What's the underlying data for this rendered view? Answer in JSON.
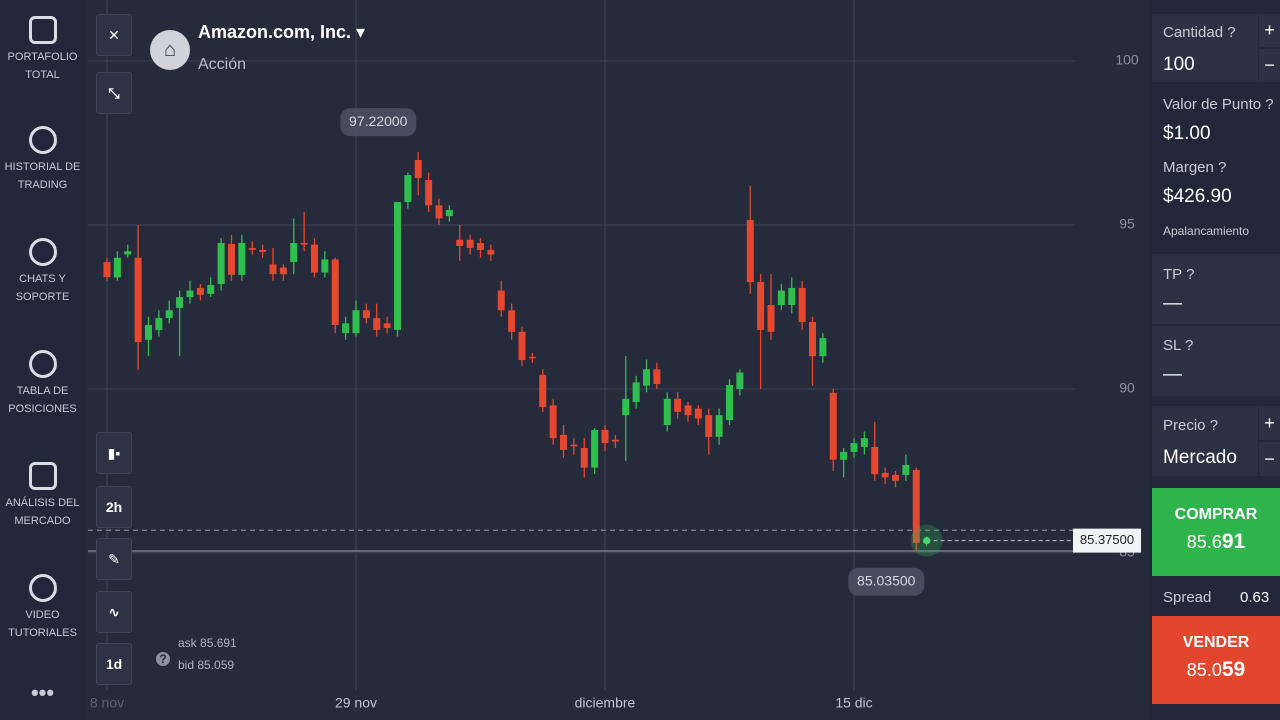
{
  "sidebar": {
    "items": [
      "PORTAFOLIO TOTAL",
      "HISTORIAL DE TRADING",
      "CHATS Y SOPORTE",
      "TABLA DE POSICIONES",
      "ANÁLISIS DEL MERCADO",
      "VIDEO TUTORIALES"
    ]
  },
  "header": {
    "title": "Amazon.com, Inc.",
    "subtitle": "Acción"
  },
  "toolbar": {
    "period": "2h",
    "range": "1d"
  },
  "quote": {
    "ask_label": "ask",
    "ask": 85.691,
    "bid_label": "bid",
    "bid": 85.059
  },
  "chart_data": {
    "type": "candlestick",
    "x": [
      0,
      1,
      2,
      3,
      4,
      5,
      6,
      7,
      8,
      9,
      10,
      11,
      12,
      13,
      14,
      15,
      16,
      17,
      18,
      19,
      20,
      21,
      22,
      23,
      24,
      25,
      26,
      27,
      28,
      29,
      30,
      31,
      32,
      33,
      34,
      35,
      36,
      37,
      38,
      39,
      40,
      41,
      42,
      43,
      44,
      45,
      46,
      47,
      48,
      49,
      50,
      51,
      52,
      53,
      54,
      55,
      56,
      57,
      58,
      59,
      60,
      61,
      62,
      63,
      64,
      65,
      66,
      67,
      68,
      69,
      70,
      71,
      72,
      73,
      74,
      75,
      76,
      77,
      78,
      79
    ],
    "open": [
      93.87,
      93.4,
      94.1,
      94.0,
      91.5,
      91.8,
      92.16,
      92.47,
      92.8,
      93.08,
      92.9,
      93.2,
      94.42,
      93.48,
      94.3,
      94.24,
      93.8,
      93.7,
      93.87,
      94.45,
      94.4,
      93.55,
      93.95,
      91.7,
      91.7,
      92.4,
      92.16,
      92.0,
      91.8,
      95.7,
      96.98,
      96.37,
      95.6,
      95.27,
      94.55,
      94.55,
      94.45,
      94.24,
      93.0,
      92.4,
      91.74,
      90.98,
      90.43,
      89.5,
      88.6,
      88.3,
      88.2,
      87.6,
      88.75,
      88.45,
      89.2,
      89.6,
      90.1,
      90.6,
      88.9,
      89.7,
      89.5,
      89.4,
      89.2,
      88.54,
      89.05,
      90.0,
      95.15,
      93.26,
      92.56,
      92.56,
      92.56,
      93.08,
      92.04,
      91.0,
      89.88,
      87.84,
      88.08,
      88.23,
      88.23,
      87.44,
      87.38,
      87.38,
      87.53,
      85.3
    ],
    "high": [
      94.0,
      94.2,
      94.4,
      95.0,
      92.2,
      92.4,
      92.7,
      93.0,
      93.3,
      93.2,
      93.4,
      94.6,
      94.7,
      94.7,
      94.5,
      94.4,
      94.3,
      93.8,
      95.2,
      95.4,
      94.6,
      94.2,
      94.0,
      92.2,
      92.7,
      92.6,
      92.6,
      92.2,
      95.7,
      96.6,
      97.22,
      96.6,
      95.8,
      95.6,
      95.0,
      94.7,
      94.6,
      94.4,
      93.3,
      92.6,
      91.9,
      91.1,
      90.6,
      89.7,
      88.9,
      88.5,
      88.5,
      88.8,
      88.9,
      88.6,
      91.0,
      90.4,
      90.9,
      90.8,
      89.9,
      89.9,
      89.6,
      89.5,
      89.4,
      89.4,
      90.3,
      90.6,
      96.2,
      93.5,
      93.5,
      93.2,
      93.4,
      93.3,
      92.2,
      91.7,
      90.0,
      88.2,
      88.5,
      88.7,
      89.0,
      87.6,
      87.5,
      88.0,
      87.6,
      85.5
    ],
    "low": [
      93.3,
      93.3,
      94.0,
      90.58,
      91.0,
      91.6,
      92.0,
      91.0,
      92.6,
      92.7,
      92.8,
      93.0,
      93.3,
      93.3,
      94.1,
      94.0,
      93.3,
      93.3,
      93.5,
      94.2,
      93.4,
      93.4,
      91.7,
      91.5,
      91.6,
      92.0,
      91.6,
      91.7,
      91.6,
      95.5,
      95.9,
      95.4,
      95.0,
      95.1,
      93.9,
      94.1,
      94.0,
      93.9,
      92.2,
      91.5,
      90.7,
      90.8,
      89.3,
      88.3,
      87.9,
      88.0,
      87.3,
      87.4,
      88.1,
      88.2,
      87.8,
      89.4,
      89.9,
      90.0,
      88.7,
      89.1,
      89.0,
      88.9,
      88.0,
      88.3,
      88.9,
      89.8,
      92.9,
      90.0,
      91.5,
      92.4,
      92.3,
      91.8,
      90.1,
      90.8,
      87.5,
      87.3,
      87.9,
      88.0,
      87.2,
      87.1,
      87.0,
      87.2,
      85.035,
      85.2
    ],
    "close": [
      93.41,
      94.0,
      94.2,
      91.43,
      91.95,
      92.16,
      92.4,
      92.8,
      93.0,
      92.87,
      93.17,
      94.45,
      93.48,
      94.45,
      94.24,
      94.18,
      93.5,
      93.5,
      94.45,
      94.4,
      93.55,
      93.95,
      91.95,
      92.0,
      92.4,
      92.16,
      91.8,
      91.86,
      95.7,
      96.52,
      96.43,
      95.6,
      95.2,
      95.46,
      94.36,
      94.3,
      94.24,
      94.1,
      92.4,
      91.74,
      90.88,
      90.95,
      89.45,
      88.5,
      88.14,
      88.25,
      87.6,
      88.75,
      88.35,
      88.4,
      89.7,
      90.2,
      90.6,
      90.15,
      89.7,
      89.3,
      89.2,
      89.1,
      88.54,
      89.2,
      90.12,
      90.5,
      93.26,
      91.8,
      91.74,
      93.0,
      93.08,
      92.04,
      91.0,
      91.55,
      87.84,
      88.08,
      88.35,
      88.5,
      87.4,
      87.3,
      87.2,
      87.68,
      85.3,
      85.375
    ],
    "xlim": [
      -1.83,
      93.3
    ],
    "xticks": [
      {
        "value": 0,
        "label": "8 nov"
      },
      {
        "value": 24,
        "label": "29 nov"
      },
      {
        "value": 48,
        "label": "diciembre"
      },
      {
        "value": 72,
        "label": "15 dic"
      }
    ],
    "ylim": [
      80.82,
      101.86
    ],
    "yticks": [
      85,
      90,
      95,
      100
    ],
    "grid": true,
    "up_color": "#2fbf4f",
    "down_color": "#e5482f",
    "annotations": [
      {
        "value": 97.22,
        "label": "97.22000"
      },
      {
        "value": 85.035,
        "label": "85.03500"
      }
    ],
    "last_price": {
      "value": 85.375,
      "label": "85.37500"
    }
  },
  "order_panel": {
    "quantity_label": "Cantidad",
    "quantity": 100,
    "point_value_label": "Valor de Punto",
    "point_value": "$1.00",
    "margin_label": "Margen",
    "margin": "$426.90",
    "leverage_label": "Apalancamiento",
    "tp_label": "TP",
    "tp": "—",
    "sl_label": "SL",
    "sl": "—",
    "price_label": "Precio",
    "price": "Mercado",
    "buy_label": "COMPRAR",
    "spread_label": "Spread",
    "spread": 0.63,
    "sell_label": "VENDER"
  }
}
